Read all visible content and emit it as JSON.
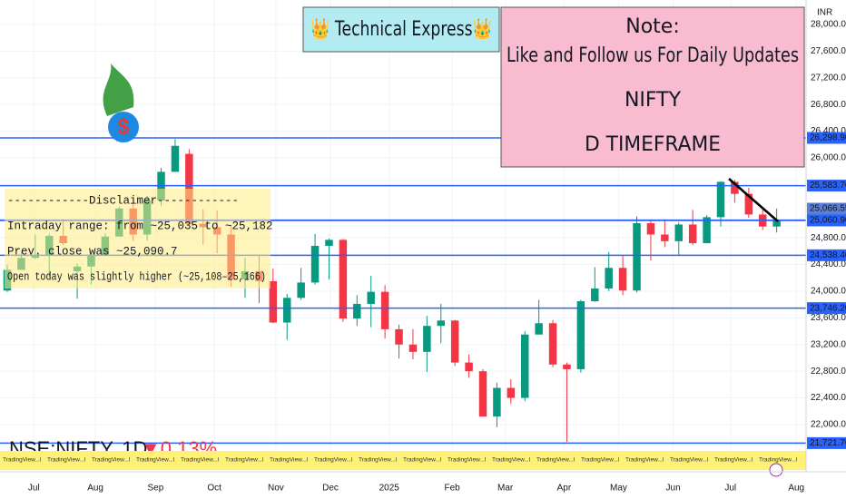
{
  "chart_data": {
    "type": "candlestick",
    "title": "👑 Technical Express👑",
    "note_lines": [
      "Note:",
      "Like and Follow us For Daily Updates",
      "NIFTY",
      "D TIMEFRAME"
    ],
    "disclaimer_lines": [
      "------------Disclaimer------------",
      "Intraday range: from ~25,035 to ~25,182",
      "Prev. close was ~25,090.7",
      "Open today was slightly higher (~25,108–25,166)"
    ],
    "symbol": "NSE:NIFTY, 1D",
    "change": "▼0.13%",
    "watermark": "TradingView...l",
    "currency": "INR",
    "up_color": "#089981",
    "down_color": "#f23645",
    "level_color": "#2962ff",
    "grid": true,
    "open": [
      24010,
      24320,
      24500,
      24530,
      24830,
      24300,
      24370,
      24540,
      24820,
      25240,
      24850,
      25360,
      25790,
      26060,
      25010,
      24960,
      24850,
      24180,
      24300,
      24150,
      23530,
      23900,
      24130,
      24680,
      24770,
      23590,
      23810,
      23990,
      23430,
      23200,
      23090,
      23480,
      23560,
      22930,
      22800,
      22120,
      22550,
      22400,
      23350,
      23520,
      22900,
      22830,
      23850,
      24040,
      24350,
      24010,
      25020,
      24850,
      24750,
      25000,
      24720,
      25110,
      25640,
      25460,
      25150,
      24970
    ],
    "high": [
      24400,
      24590,
      24850,
      24860,
      25080,
      24420,
      24560,
      24870,
      25270,
      25330,
      25430,
      25850,
      26280,
      26130,
      25230,
      25210,
      24980,
      24500,
      24540,
      24340,
      23960,
      24350,
      24860,
      24790,
      24780,
      23940,
      24230,
      24090,
      23500,
      23430,
      23630,
      23810,
      23570,
      23050,
      22830,
      22630,
      22680,
      23400,
      23870,
      23570,
      22930,
      23870,
      24360,
      24590,
      24530,
      25120,
      25060,
      25080,
      25030,
      25220,
      25140,
      25650,
      25670,
      25550,
      25250,
      25240
    ],
    "low": [
      23990,
      24330,
      24480,
      24210,
      24690,
      23890,
      24100,
      24540,
      24830,
      24750,
      24760,
      25280,
      25790,
      25000,
      24700,
      24570,
      24070,
      23900,
      23820,
      23520,
      23270,
      23870,
      24100,
      24180,
      23540,
      23480,
      23460,
      23290,
      22990,
      22980,
      22790,
      23220,
      22880,
      22700,
      22120,
      21960,
      22310,
      22350,
      23350,
      22860,
      21740,
      22780,
      23840,
      24000,
      23940,
      23980,
      24460,
      24660,
      24530,
      24690,
      24720,
      24970,
      25330,
      25100,
      24920,
      24880
    ],
    "close": [
      24320,
      24500,
      24530,
      24830,
      24720,
      24370,
      24540,
      24820,
      25240,
      24850,
      25360,
      25790,
      26180,
      25010,
      24960,
      24850,
      24180,
      24300,
      24150,
      23530,
      23900,
      24130,
      24680,
      24770,
      23590,
      23810,
      23990,
      23430,
      23200,
      23090,
      23480,
      23560,
      22930,
      22800,
      22120,
      22550,
      22400,
      23350,
      23520,
      22900,
      22830,
      23850,
      24040,
      24350,
      24010,
      25020,
      24850,
      24750,
      25000,
      24720,
      25110,
      25640,
      25460,
      25150,
      24970,
      25060.9
    ],
    "xlim": [
      -0.52,
      57.1
    ],
    "xticks": [
      {
        "value": 1.9,
        "label": "Jul"
      },
      {
        "value": 6.3,
        "label": "Aug"
      },
      {
        "value": 10.6,
        "label": "Sep"
      },
      {
        "value": 14.8,
        "label": "Oct"
      },
      {
        "value": 19.2,
        "label": "Nov"
      },
      {
        "value": 23.1,
        "label": "Dec"
      },
      {
        "value": 27.3,
        "label": "2025"
      },
      {
        "value": 31.8,
        "label": "Feb"
      },
      {
        "value": 35.6,
        "label": "Mar"
      },
      {
        "value": 39.8,
        "label": "Apr"
      },
      {
        "value": 43.7,
        "label": "May"
      },
      {
        "value": 47.6,
        "label": "Jun"
      },
      {
        "value": 51.7,
        "label": "Jul"
      },
      {
        "value": 56.4,
        "label": "Aug"
      }
    ],
    "ylim": [
      21632,
      28367
    ],
    "yticks": [
      {
        "value": 28000,
        "label": "28,000.00"
      },
      {
        "value": 27600,
        "label": "27,600.00"
      },
      {
        "value": 27200,
        "label": "27,200.00"
      },
      {
        "value": 26800,
        "label": "26,800.00"
      },
      {
        "value": 26400,
        "label": "26,400.00"
      },
      {
        "value": 26000,
        "label": "26,000.00"
      },
      {
        "value": 24800,
        "label": "24,800.00"
      },
      {
        "value": 24400,
        "label": "24,400.00"
      },
      {
        "value": 24000,
        "label": "24,000.00"
      },
      {
        "value": 23600,
        "label": "23,600.00"
      },
      {
        "value": 23200,
        "label": "23,200.00"
      },
      {
        "value": 22800,
        "label": "22,800.00"
      },
      {
        "value": 22400,
        "label": "22,400.00"
      },
      {
        "value": 22000,
        "label": "22,000.00"
      }
    ],
    "levels": [
      {
        "value": 26298.9,
        "label": "26,298.90"
      },
      {
        "value": 25583.7,
        "label": "25,583.70"
      },
      {
        "value": 25066.55,
        "label": "25,066.55"
      },
      {
        "value": 25060.9,
        "label": "25,060.90"
      },
      {
        "value": 24538.4,
        "label": "24,538.40"
      },
      {
        "value": 23746.2,
        "label": "23,746.20"
      },
      {
        "value": 21721.7,
        "label": "21,721.70"
      }
    ]
  }
}
